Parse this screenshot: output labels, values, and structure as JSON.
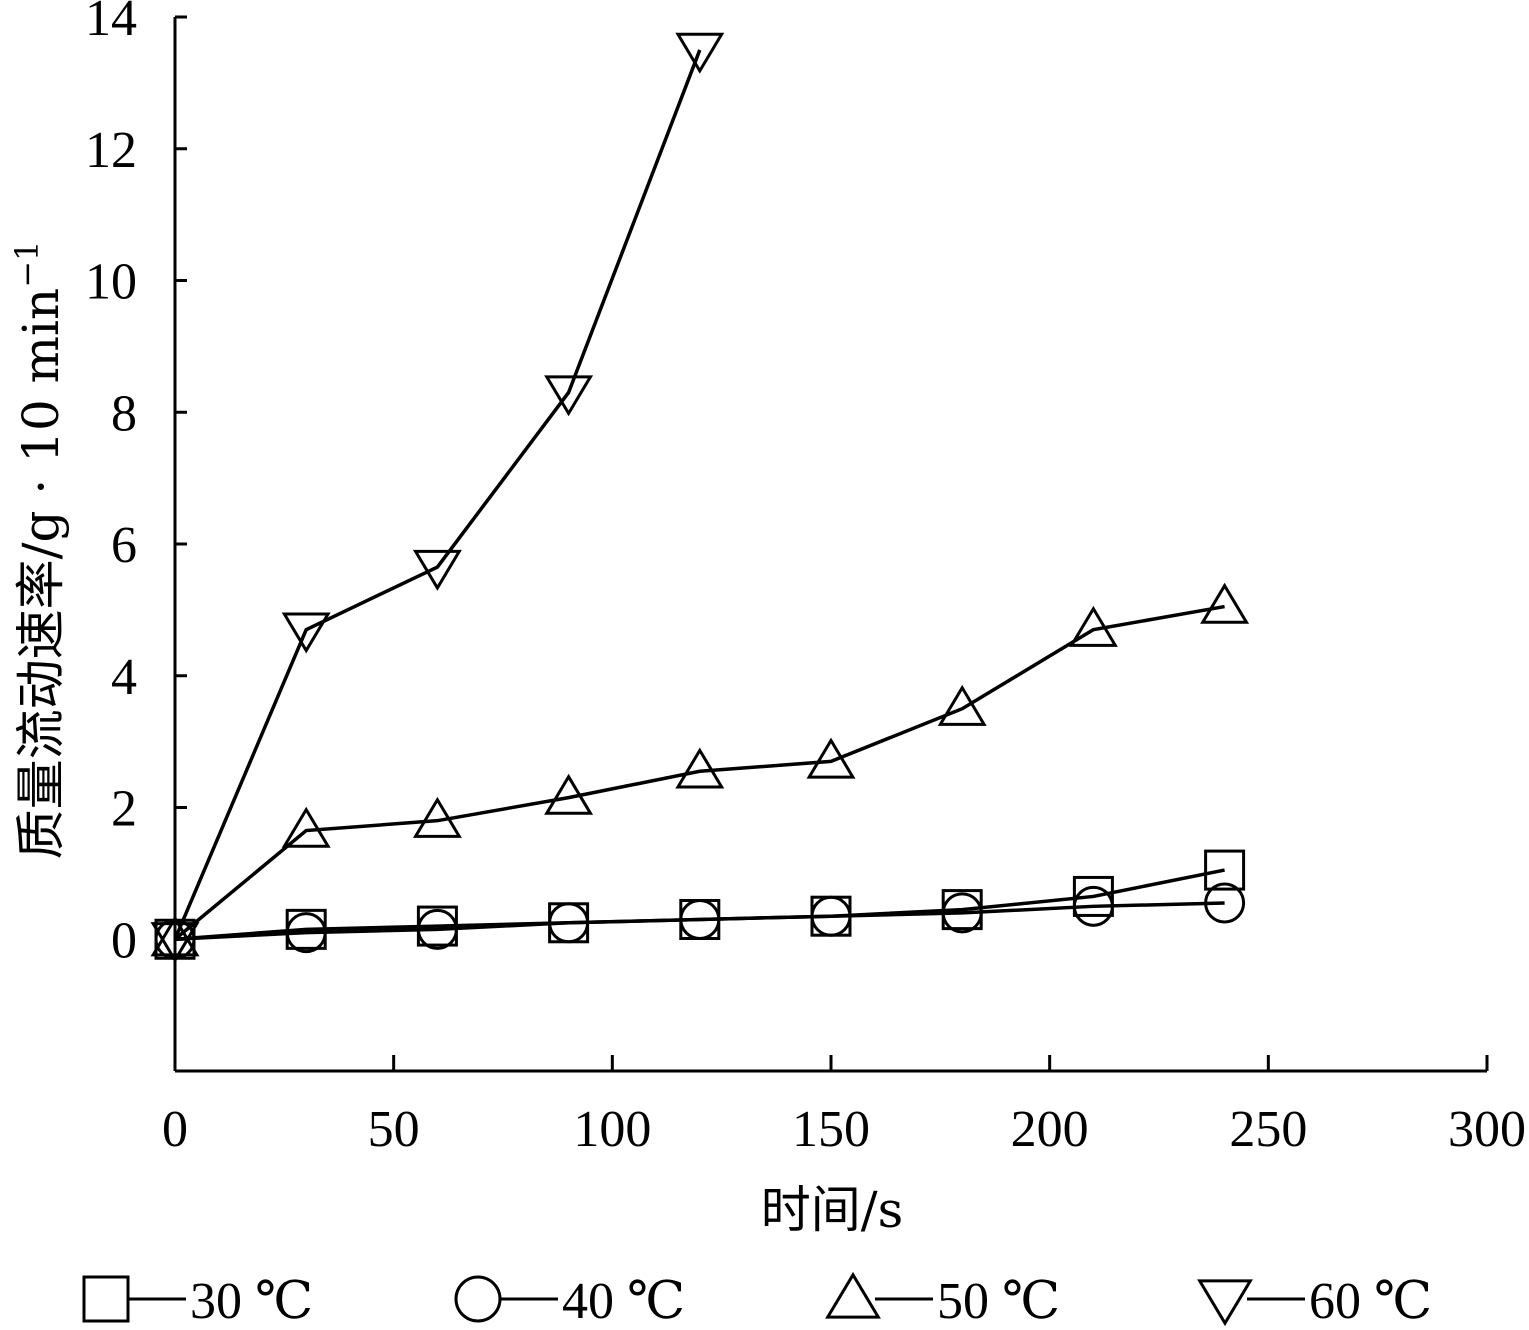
{
  "chart_data": {
    "type": "line",
    "title": "",
    "xlabel": "时间/s",
    "ylabel": "质量流动速率/g · 10 min",
    "ylabel_superscript": "−1",
    "xlim": [
      0,
      300
    ],
    "ylim": [
      -2,
      14
    ],
    "xticks": [
      0,
      50,
      100,
      150,
      200,
      250,
      300
    ],
    "yticks": [
      0,
      2,
      4,
      6,
      8,
      10,
      12,
      14
    ],
    "grid": false,
    "legend_position": "bottom",
    "series": [
      {
        "name": "30 ℃",
        "marker": "square",
        "x": [
          0,
          30,
          60,
          90,
          120,
          150,
          180,
          210,
          240
        ],
        "y": [
          0,
          0.15,
          0.2,
          0.25,
          0.3,
          0.35,
          0.45,
          0.65,
          1.05
        ]
      },
      {
        "name": "40 ℃",
        "marker": "circle",
        "x": [
          0,
          30,
          60,
          90,
          120,
          150,
          180,
          210,
          240
        ],
        "y": [
          0,
          0.1,
          0.15,
          0.25,
          0.3,
          0.35,
          0.4,
          0.5,
          0.55
        ]
      },
      {
        "name": "50 ℃",
        "marker": "triangle-up",
        "x": [
          0,
          30,
          60,
          90,
          120,
          150,
          180,
          210,
          240
        ],
        "y": [
          0,
          1.65,
          1.8,
          2.15,
          2.55,
          2.7,
          3.5,
          4.7,
          5.05
        ]
      },
      {
        "name": "60 ℃",
        "marker": "triangle-down",
        "x": [
          0,
          30,
          60,
          90,
          120
        ],
        "y": [
          0,
          4.7,
          5.65,
          8.3,
          13.5
        ]
      }
    ]
  }
}
